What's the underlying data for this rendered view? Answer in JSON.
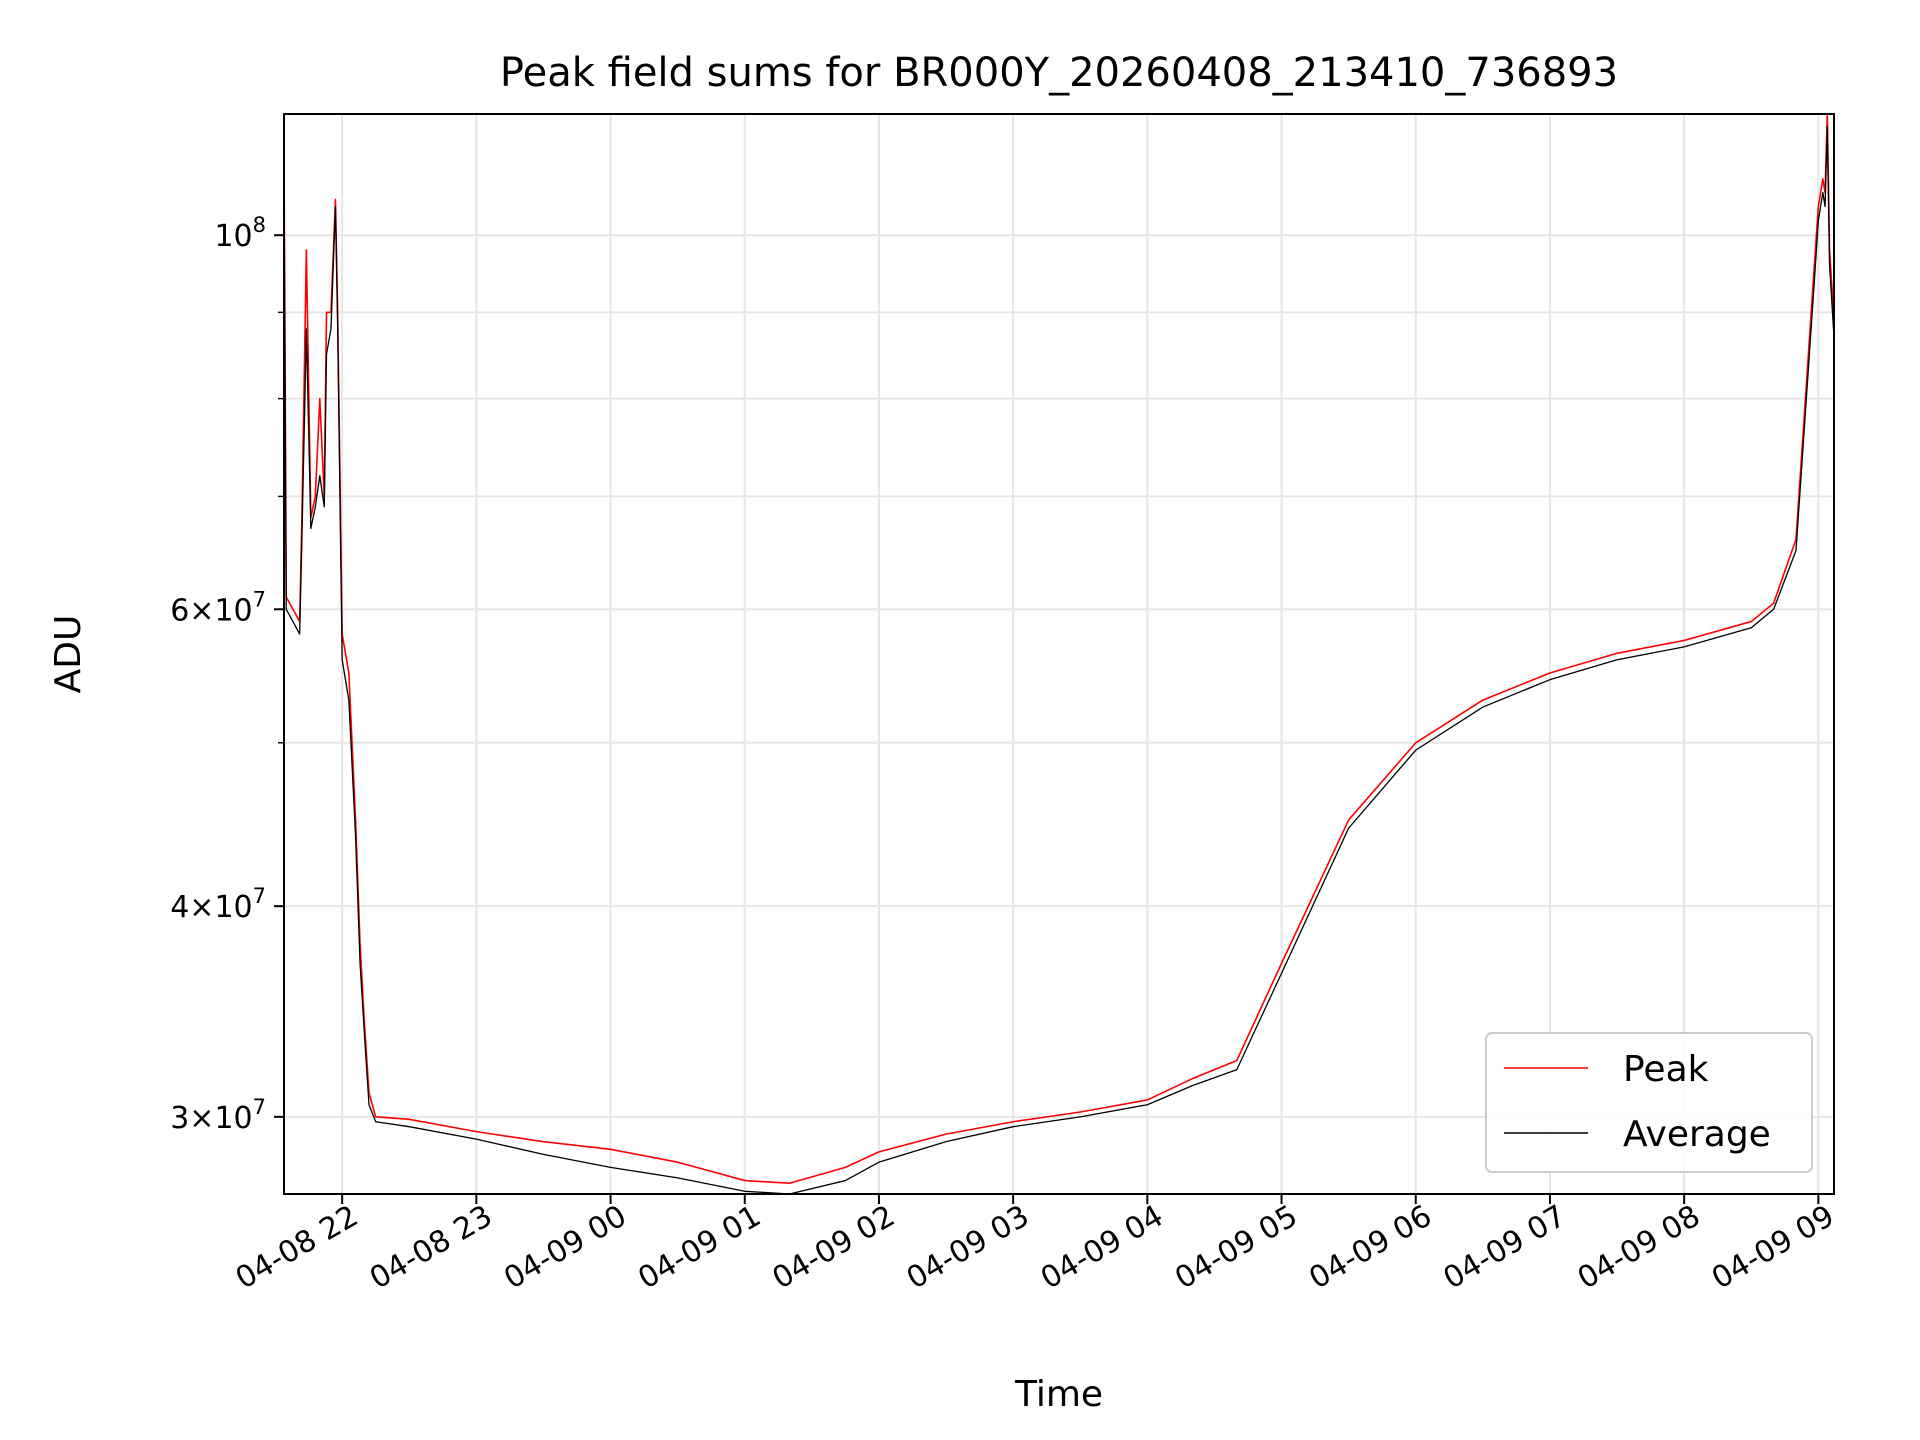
{
  "chart_data": {
    "type": "line",
    "title": "Peak field sums for BR000Y_20260408_213410_736893",
    "xlabel": "Time",
    "ylabel": "ADU",
    "yscale": "log",
    "grid": true,
    "legend_position": "lower-right",
    "x_range": [
      "2026-04-08 21:34",
      "2026-04-09 09:07"
    ],
    "ylim": [
      27000000,
      118000000
    ],
    "x_ticks": [
      "04-08 22",
      "04-08 23",
      "04-09 00",
      "04-09 01",
      "04-09 02",
      "04-09 03",
      "04-09 04",
      "04-09 05",
      "04-09 06",
      "04-09 07",
      "04-09 08",
      "04-09 09"
    ],
    "y_ticks": [
      {
        "value": 30000000,
        "mantissa": "3",
        "exponent": "7"
      },
      {
        "value": 40000000,
        "mantissa": "4",
        "exponent": "7"
      },
      {
        "value": 60000000,
        "mantissa": "6",
        "exponent": "7"
      },
      {
        "value": 100000000,
        "mantissa": "",
        "exponent": "8"
      }
    ],
    "series": [
      {
        "name": "Peak",
        "color": "#ff0000",
        "x": [
          "2026-04-08 21:34",
          "2026-04-08 21:35",
          "2026-04-08 21:38",
          "2026-04-08 21:41",
          "2026-04-08 21:42",
          "2026-04-08 21:44",
          "2026-04-08 21:46",
          "2026-04-08 21:48",
          "2026-04-08 21:50",
          "2026-04-08 21:52",
          "2026-04-08 21:53",
          "2026-04-08 21:55",
          "2026-04-08 21:57",
          "2026-04-08 21:58",
          "2026-04-08 22:00",
          "2026-04-08 22:03",
          "2026-04-08 22:06",
          "2026-04-08 22:08",
          "2026-04-08 22:10",
          "2026-04-08 22:12",
          "2026-04-08 22:15",
          "2026-04-08 22:30",
          "2026-04-08 23:00",
          "2026-04-08 23:30",
          "2026-04-09 00:00",
          "2026-04-09 00:30",
          "2026-04-09 01:00",
          "2026-04-09 01:20",
          "2026-04-09 01:45",
          "2026-04-09 02:00",
          "2026-04-09 02:30",
          "2026-04-09 03:00",
          "2026-04-09 03:30",
          "2026-04-09 04:00",
          "2026-04-09 04:20",
          "2026-04-09 04:40",
          "2026-04-09 05:00",
          "2026-04-09 05:30",
          "2026-04-09 06:00",
          "2026-04-09 06:30",
          "2026-04-09 07:00",
          "2026-04-09 07:30",
          "2026-04-09 08:00",
          "2026-04-09 08:20",
          "2026-04-09 08:30",
          "2026-04-09 08:40",
          "2026-04-09 08:50",
          "2026-04-09 08:58",
          "2026-04-09 09:00",
          "2026-04-09 09:02",
          "2026-04-09 09:03",
          "2026-04-09 09:04",
          "2026-04-09 09:05",
          "2026-04-09 09:07"
        ],
        "y": [
          112000000,
          61000000,
          60000000,
          59000000,
          68000000,
          98000000,
          68000000,
          70000000,
          80000000,
          70000000,
          90000000,
          90000000,
          105000000,
          90000000,
          58000000,
          55000000,
          45000000,
          38000000,
          34000000,
          31000000,
          30000000,
          29900000,
          29400000,
          29000000,
          28700000,
          28200000,
          27500000,
          27400000,
          28000000,
          28600000,
          29300000,
          29800000,
          30200000,
          30700000,
          31600000,
          32400000,
          37000000,
          45000000,
          50000000,
          53000000,
          55000000,
          56500000,
          57500000,
          58500000,
          59000000,
          60500000,
          66000000,
          95000000,
          104000000,
          108000000,
          106000000,
          118000000,
          98000000,
          89000000
        ]
      },
      {
        "name": "Average",
        "color": "#000000",
        "x": [
          "2026-04-08 21:34",
          "2026-04-08 21:35",
          "2026-04-08 21:38",
          "2026-04-08 21:41",
          "2026-04-08 21:42",
          "2026-04-08 21:44",
          "2026-04-08 21:46",
          "2026-04-08 21:48",
          "2026-04-08 21:50",
          "2026-04-08 21:52",
          "2026-04-08 21:53",
          "2026-04-08 21:55",
          "2026-04-08 21:57",
          "2026-04-08 21:58",
          "2026-04-08 22:00",
          "2026-04-08 22:03",
          "2026-04-08 22:06",
          "2026-04-08 22:08",
          "2026-04-08 22:10",
          "2026-04-08 22:12",
          "2026-04-08 22:15",
          "2026-04-08 22:30",
          "2026-04-08 23:00",
          "2026-04-08 23:30",
          "2026-04-09 00:00",
          "2026-04-09 00:30",
          "2026-04-09 01:00",
          "2026-04-09 01:20",
          "2026-04-09 01:45",
          "2026-04-09 02:00",
          "2026-04-09 02:30",
          "2026-04-09 03:00",
          "2026-04-09 03:30",
          "2026-04-09 04:00",
          "2026-04-09 04:20",
          "2026-04-09 04:40",
          "2026-04-09 05:00",
          "2026-04-09 05:30",
          "2026-04-09 06:00",
          "2026-04-09 06:30",
          "2026-04-09 07:00",
          "2026-04-09 07:30",
          "2026-04-09 08:00",
          "2026-04-09 08:20",
          "2026-04-09 08:30",
          "2026-04-09 08:40",
          "2026-04-09 08:50",
          "2026-04-09 08:58",
          "2026-04-09 09:00",
          "2026-04-09 09:02",
          "2026-04-09 09:03",
          "2026-04-09 09:04",
          "2026-04-09 09:05",
          "2026-04-09 09:07"
        ],
        "y": [
          110000000,
          60000000,
          59000000,
          58000000,
          66000000,
          88000000,
          67000000,
          69000000,
          72000000,
          69000000,
          85000000,
          88000000,
          104000000,
          88000000,
          56000000,
          53000000,
          44000000,
          37000000,
          33500000,
          30500000,
          29800000,
          29600000,
          29100000,
          28500000,
          28000000,
          27600000,
          27100000,
          27000000,
          27500000,
          28200000,
          29000000,
          29600000,
          30000000,
          30500000,
          31300000,
          32000000,
          36500000,
          44500000,
          49500000,
          52500000,
          54500000,
          56000000,
          57000000,
          58000000,
          58500000,
          60000000,
          65000000,
          93000000,
          102000000,
          106000000,
          104000000,
          116000000,
          96000000,
          87000000
        ]
      }
    ]
  }
}
